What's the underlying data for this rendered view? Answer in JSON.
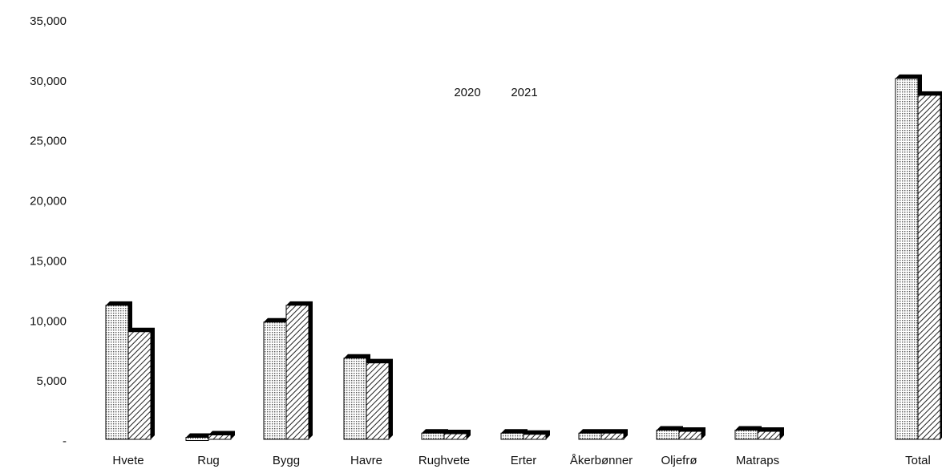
{
  "chart_data": {
    "type": "bar",
    "title": "",
    "xlabel": "",
    "ylabel": "",
    "categories": [
      "Hvete",
      "Rug",
      "Bygg",
      "Havre",
      "Rughvete",
      "Erter",
      "Åkerbønner",
      "Oljefrø",
      "Matraps",
      "Total"
    ],
    "series": [
      {
        "name": "2020",
        "values": [
          11300,
          300,
          9900,
          6900,
          650,
          650,
          650,
          900,
          900,
          30200
        ],
        "pattern": "dots",
        "color": "#000000"
      },
      {
        "name": "2021",
        "values": [
          9100,
          500,
          11300,
          6500,
          600,
          550,
          650,
          800,
          800,
          28800
        ],
        "pattern": "diagonal-hatch",
        "color": "#000000"
      }
    ],
    "ylim": [
      0,
      35000
    ],
    "yticks": [
      "-",
      "5,000",
      "10,000",
      "15,000",
      "20,000",
      "25,000",
      "30,000",
      "35,000"
    ],
    "grid": false,
    "legend_position": "top-center"
  }
}
